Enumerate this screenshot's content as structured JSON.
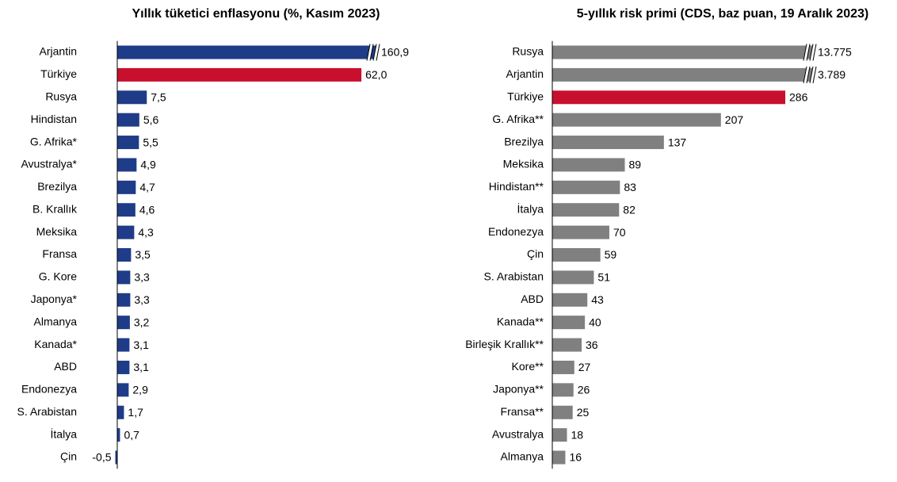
{
  "chart_data": [
    {
      "type": "barh",
      "title": "Yıllık tüketici enflasyonu (%, Kasım 2023)",
      "categories": [
        "Arjantin",
        "Türkiye",
        "Rusya",
        "Hindistan",
        "G. Afrika*",
        "Avustralya*",
        "Brezilya",
        "B. Krallık",
        "Meksika",
        "Fransa",
        "G. Kore",
        "Japonya*",
        "Almanya",
        "Kanada*",
        "ABD",
        "Endonezya",
        "S. Arabistan",
        "İtalya",
        "Çin"
      ],
      "values": [
        160.9,
        62.0,
        7.5,
        5.6,
        5.5,
        4.9,
        4.7,
        4.6,
        4.3,
        3.5,
        3.3,
        3.3,
        3.2,
        3.1,
        3.1,
        2.9,
        1.7,
        0.7,
        -0.5
      ],
      "value_labels": [
        "160,9",
        "62,0",
        "7,5",
        "5,6",
        "5,5",
        "4,9",
        "4,7",
        "4,6",
        "4,3",
        "3,5",
        "3,3",
        "3,3",
        "3,2",
        "3,1",
        "3,1",
        "2,9",
        "1,7",
        "0,7",
        "-0,5"
      ],
      "colors": [
        "#1f3c88",
        "#c8102e",
        "#1f3c88",
        "#1f3c88",
        "#1f3c88",
        "#1f3c88",
        "#1f3c88",
        "#1f3c88",
        "#1f3c88",
        "#1f3c88",
        "#1f3c88",
        "#1f3c88",
        "#1f3c88",
        "#1f3c88",
        "#1f3c88",
        "#1f3c88",
        "#1f3c88",
        "#1f3c88",
        "#1f3c88"
      ],
      "xlim": [
        -0.5,
        66
      ]
    },
    {
      "type": "barh",
      "title": "5-yıllık risk primi (CDS, baz puan, 19 Aralık 2023)",
      "categories": [
        "Rusya",
        "Arjantin",
        "Türkiye",
        "G. Afrika**",
        "Brezilya",
        "Meksika",
        "Hindistan**",
        "İtalya",
        "Endonezya",
        "Çin",
        "S. Arabistan",
        "ABD",
        "Kanada**",
        "Birleşik Krallık**",
        "Kore**",
        "Japonya**",
        "Fransa**",
        "Avustralya",
        "Almanya"
      ],
      "values": [
        13775,
        3789,
        286,
        207,
        137,
        89,
        83,
        82,
        70,
        59,
        51,
        43,
        40,
        36,
        27,
        26,
        25,
        18,
        16
      ],
      "value_labels": [
        "13.775",
        "3.789",
        "286",
        "207",
        "137",
        "89",
        "83",
        "82",
        "70",
        "59",
        "51",
        "43",
        "40",
        "36",
        "27",
        "26",
        "25",
        "18",
        "16"
      ],
      "colors": [
        "#808080",
        "#808080",
        "#c8102e",
        "#808080",
        "#808080",
        "#808080",
        "#808080",
        "#808080",
        "#808080",
        "#808080",
        "#808080",
        "#808080",
        "#808080",
        "#808080",
        "#808080",
        "#808080",
        "#808080",
        "#808080",
        "#808080"
      ],
      "xlim": [
        0,
        321
      ]
    }
  ]
}
